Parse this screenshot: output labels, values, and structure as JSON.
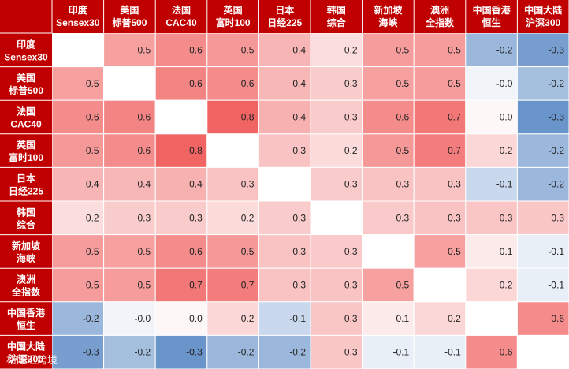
{
  "chart_data": {
    "type": "heatmap",
    "row_labels": [
      [
        "印度",
        "Sensex30"
      ],
      [
        "美国",
        "标普500"
      ],
      [
        "法国",
        "CAC40"
      ],
      [
        "英国",
        "富时100"
      ],
      [
        "日本",
        "日经225"
      ],
      [
        "韩国",
        "综合"
      ],
      [
        "新加坡",
        "海峡"
      ],
      [
        "澳洲",
        "全指数"
      ],
      [
        "中国香港",
        "恒生"
      ],
      [
        "中国大陆",
        "沪深300"
      ]
    ],
    "col_labels": [
      [
        "印度",
        "Sensex30"
      ],
      [
        "美国",
        "标普500"
      ],
      [
        "法国",
        "CAC40"
      ],
      [
        "英国",
        "富时100"
      ],
      [
        "日本",
        "日经225"
      ],
      [
        "韩国",
        "综合"
      ],
      [
        "新加坡",
        "海峡"
      ],
      [
        "澳洲",
        "全指数"
      ],
      [
        "中国香港",
        "恒生"
      ],
      [
        "中国大陆",
        "沪深300"
      ]
    ],
    "labels": [
      [
        null,
        "0.5",
        "0.6",
        "0.5",
        "0.4",
        "0.2",
        "0.5",
        "0.5",
        "-0.2",
        "-0.3"
      ],
      [
        "0.5",
        null,
        "0.6",
        "0.6",
        "0.4",
        "0.3",
        "0.5",
        "0.5",
        "-0.0",
        "-0.2"
      ],
      [
        "0.6",
        "0.6",
        null,
        "0.8",
        "0.4",
        "0.3",
        "0.6",
        "0.7",
        "0.0",
        "-0.3"
      ],
      [
        "0.5",
        "0.6",
        "0.8",
        null,
        "0.3",
        "0.2",
        "0.5",
        "0.7",
        "0.2",
        "-0.2"
      ],
      [
        "0.4",
        "0.4",
        "0.4",
        "0.3",
        null,
        "0.3",
        "0.3",
        "0.3",
        "-0.1",
        "-0.2"
      ],
      [
        "0.2",
        "0.3",
        "0.3",
        "0.2",
        "0.3",
        null,
        "0.3",
        "0.3",
        "0.3",
        "0.3"
      ],
      [
        "0.5",
        "0.5",
        "0.6",
        "0.5",
        "0.3",
        "0.3",
        null,
        "0.5",
        "0.1",
        "-0.1"
      ],
      [
        "0.5",
        "0.5",
        "0.7",
        "0.7",
        "0.3",
        "0.3",
        "0.5",
        null,
        "0.2",
        "-0.1"
      ],
      [
        "-0.2",
        "-0.0",
        "0.0",
        "0.2",
        "-0.1",
        "0.3",
        "0.1",
        "0.2",
        null,
        "0.6"
      ],
      [
        "-0.3",
        "-0.2",
        "-0.3",
        "-0.2",
        "-0.2",
        "0.3",
        "-0.1",
        "-0.1",
        "0.6",
        null
      ]
    ],
    "values": [
      [
        null,
        0.48,
        0.58,
        0.52,
        0.37,
        0.17,
        0.5,
        0.5,
        -0.22,
        -0.3
      ],
      [
        0.48,
        null,
        0.62,
        0.58,
        0.36,
        0.25,
        0.48,
        0.5,
        -0.03,
        -0.2
      ],
      [
        0.58,
        0.62,
        null,
        0.78,
        0.39,
        0.26,
        0.58,
        0.68,
        0.04,
        -0.33
      ],
      [
        0.52,
        0.58,
        0.78,
        null,
        0.3,
        0.18,
        0.52,
        0.66,
        0.2,
        -0.22
      ],
      [
        0.37,
        0.36,
        0.39,
        0.3,
        null,
        0.26,
        0.3,
        0.3,
        -0.12,
        -0.22
      ],
      [
        0.17,
        0.25,
        0.26,
        0.18,
        0.26,
        null,
        0.27,
        0.3,
        0.29,
        0.28
      ],
      [
        0.5,
        0.48,
        0.58,
        0.52,
        0.3,
        0.27,
        null,
        0.48,
        0.1,
        -0.05
      ],
      [
        0.5,
        0.5,
        0.68,
        0.66,
        0.3,
        0.3,
        0.48,
        null,
        0.2,
        -0.05
      ],
      [
        -0.22,
        -0.03,
        0.04,
        0.2,
        -0.12,
        0.29,
        0.1,
        0.2,
        null,
        0.58
      ],
      [
        -0.3,
        -0.2,
        -0.33,
        -0.22,
        -0.22,
        0.28,
        -0.05,
        -0.05,
        0.58,
        null
      ]
    ],
    "diagonal": "blank",
    "color_scale": {
      "negative": "#4a7ebf",
      "zero": "#ffffff",
      "positive": "#f06060",
      "range": [
        -0.4,
        0.8
      ]
    },
    "header_color": "#c00000",
    "gridlines": true,
    "legend": "none"
  },
  "watermark": "格隆汇跨境"
}
